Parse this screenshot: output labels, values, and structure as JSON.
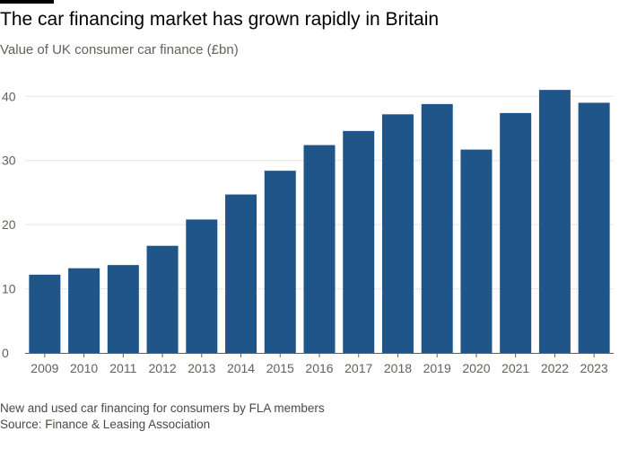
{
  "title": "The car financing market has grown rapidly in Britain",
  "subtitle": "Value of UK consumer car finance (£bn)",
  "note": "New and used car financing for consumers by FLA members",
  "source": "Source: Finance & Leasing Association",
  "colors": {
    "bar": "#1f5589",
    "grid": "#e9e4df",
    "axis": "#66605c",
    "tick_text": "#66605c"
  },
  "chart_data": {
    "type": "bar",
    "title": "The car financing market has grown rapidly in Britain",
    "subtitle": "Value of UK consumer car finance (£bn)",
    "xlabel": "",
    "ylabel": "",
    "categories": [
      "2009",
      "2010",
      "2011",
      "2012",
      "2013",
      "2014",
      "2015",
      "2016",
      "2017",
      "2018",
      "2019",
      "2020",
      "2021",
      "2022",
      "2023"
    ],
    "values": [
      12.2,
      13.2,
      13.7,
      16.7,
      20.8,
      24.7,
      28.4,
      32.4,
      34.6,
      37.2,
      38.8,
      31.7,
      37.4,
      41.0,
      39.0
    ],
    "ylim": [
      0,
      42
    ],
    "yticks": [
      0,
      10,
      20,
      30,
      40
    ],
    "grid": true,
    "legend": "none"
  }
}
